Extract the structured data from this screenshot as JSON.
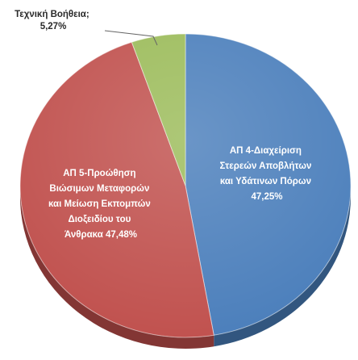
{
  "chart_data": {
    "type": "pie",
    "title": "",
    "slices": [
      {
        "label_lines": [
          "ΑΠ 4-Διαχείριση",
          "Στερεών Αποβλήτων",
          "και Υδάτινων Πόρων"
        ],
        "value_text": "47,25%",
        "value": 47.25,
        "color": "#4a7ebb"
      },
      {
        "label_lines": [
          "ΑΠ 5-Προώθηση",
          "Βιώσιμων Μεταφορών",
          "και Μείωση Εκπομπών",
          "Διοξειδίου του"
        ],
        "last_line_prefix": "Άνθρακα",
        "value_text": "47,48%",
        "value": 47.48,
        "color": "#c0504d"
      },
      {
        "label_lines": [
          "Τεχνική Βοήθεια;"
        ],
        "value_text": "5,27%",
        "value": 5.27,
        "color": "#9bbb59"
      }
    ]
  }
}
